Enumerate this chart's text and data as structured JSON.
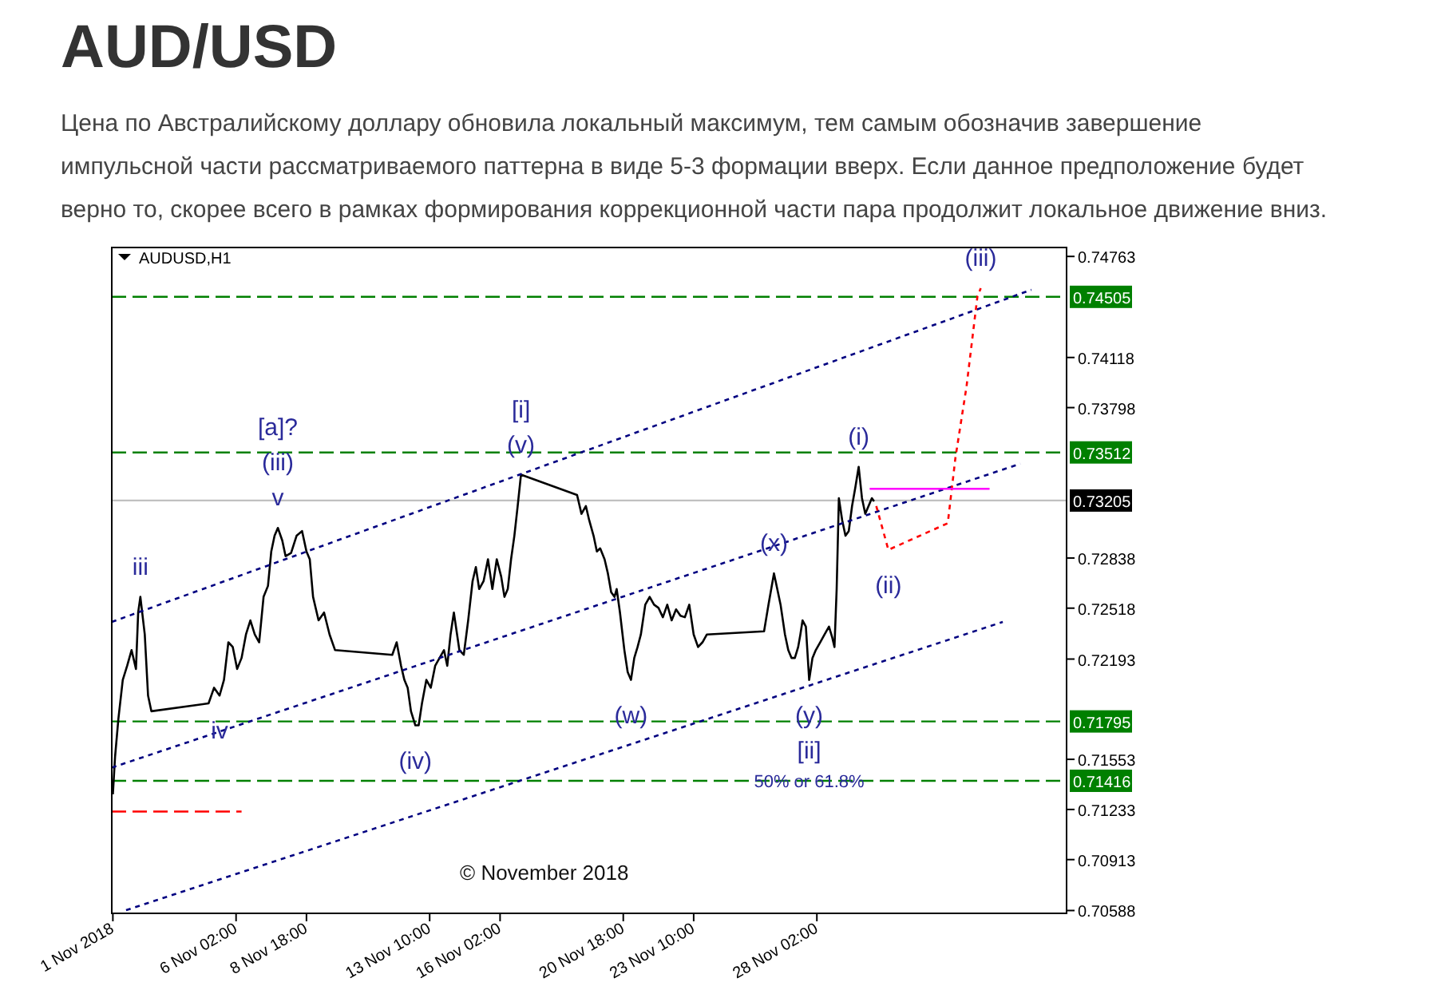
{
  "chart_data": {
    "type": "line",
    "title": "AUD/USD",
    "subtitle": "Цена по Австралийскому доллару обновила локальный максимум, тем самым обозначив завершение импульсной части рассматриваемого паттерна в виде 5-3 формации вверх. Если данное предположение будет верно то, скорее всего в рамках формирования коррекционной части пара продолжит локальное движение вниз.",
    "xlim": [
      "2018-11-01T09:00",
      "2018-12-07T13:00"
    ],
    "xticks": [
      {
        "value": "2018-11-01T10:00",
        "label": "1 Nov 2018"
      },
      {
        "value": "2018-11-06T02:00",
        "label": "6 Nov 02:00"
      },
      {
        "value": "2018-11-08T18:00",
        "label": "8 Nov 18:00"
      },
      {
        "value": "2018-11-13T10:00",
        "label": "13 Nov 10:00"
      },
      {
        "value": "2018-11-16T02:00",
        "label": "16 Nov 02:00"
      },
      {
        "value": "2018-11-20T18:00",
        "label": "20 Nov 18:00"
      },
      {
        "value": "2018-11-23T10:00",
        "label": "23 Nov 10:00"
      },
      {
        "value": "2018-11-28T02:00",
        "label": "28 Nov 02:00"
      }
    ],
    "ylim": [
      0.7057,
      0.7482
    ],
    "yticks": [
      0.74763,
      0.74118,
      0.73798,
      0.72838,
      0.72518,
      0.72193,
      0.71553,
      0.71233,
      0.70913,
      0.70588
    ],
    "series": [
      {
        "color": "#000000",
        "x": [
          "2018-11-01T10:00",
          "2018-11-01T12:00",
          "2018-11-01T15:00",
          "2018-11-01T19:00",
          "2018-11-01T23:00",
          "2018-11-02T03:00",
          "2018-11-02T07:00",
          "2018-11-02T09:00",
          "2018-11-02T11:00",
          "2018-11-02T15:00",
          "2018-11-02T18:00",
          "2018-11-02T21:00",
          "2018-11-05T01:00",
          "2018-11-05T06:00",
          "2018-11-05T11:00",
          "2018-11-05T15:00",
          "2018-11-05T19:00",
          "2018-11-05T23:00",
          "2018-11-06T03:00",
          "2018-11-06T07:00",
          "2018-11-06T11:00",
          "2018-11-06T15:00",
          "2018-11-06T19:00",
          "2018-11-06T23:00",
          "2018-11-07T03:00",
          "2018-11-07T07:00",
          "2018-11-07T10:00",
          "2018-11-07T13:00",
          "2018-11-07T16:00",
          "2018-11-07T20:00",
          "2018-11-07T23:00",
          "2018-11-08T04:00",
          "2018-11-08T09:00",
          "2018-11-08T14:00",
          "2018-11-08T18:00",
          "2018-11-08T21:00",
          "2018-11-09T00:00",
          "2018-11-09T05:00",
          "2018-11-09T10:00",
          "2018-11-09T15:00",
          "2018-11-09T20:00",
          "2018-11-12T00:00",
          "2018-11-12T04:00",
          "2018-11-12T08:00",
          "2018-11-12T11:00",
          "2018-11-12T14:00",
          "2018-11-12T17:00",
          "2018-11-12T21:00",
          "2018-11-13T00:00",
          "2018-11-13T03:00",
          "2018-11-13T07:00",
          "2018-11-13T11:00",
          "2018-11-13T15:00",
          "2018-11-13T19:00",
          "2018-11-13T23:00",
          "2018-11-14T02:00",
          "2018-11-14T05:00",
          "2018-11-14T08:00",
          "2018-11-14T13:00",
          "2018-11-14T17:00",
          "2018-11-14T21:00",
          "2018-11-15T01:00",
          "2018-11-15T04:00",
          "2018-11-15T07:00",
          "2018-11-15T11:00",
          "2018-11-15T15:00",
          "2018-11-15T19:00",
          "2018-11-15T23:00",
          "2018-11-16T03:00",
          "2018-11-16T06:00",
          "2018-11-16T09:00",
          "2018-11-16T12:00",
          "2018-11-16T15:00",
          "2018-11-16T18:00",
          "2018-11-16T21:00",
          "2018-11-19T00:00",
          "2018-11-19T04:00",
          "2018-11-19T08:00",
          "2018-11-19T11:00",
          "2018-11-19T15:00",
          "2018-11-19T18:00",
          "2018-11-19T21:00",
          "2018-11-20T01:00",
          "2018-11-20T04:00",
          "2018-11-20T07:00",
          "2018-11-20T10:00",
          "2018-11-20T12:00",
          "2018-11-20T15:00",
          "2018-11-20T19:00",
          "2018-11-20T22:00",
          "2018-11-21T01:00",
          "2018-11-21T04:00",
          "2018-11-21T07:00",
          "2018-11-21T10:00",
          "2018-11-21T14:00",
          "2018-11-21T18:00",
          "2018-11-21T22:00",
          "2018-11-22T02:00",
          "2018-11-22T06:00",
          "2018-11-22T10:00",
          "2018-11-22T14:00",
          "2018-11-22T18:00",
          "2018-11-22T22:00",
          "2018-11-23T02:00",
          "2018-11-23T06:00",
          "2018-11-23T10:00",
          "2018-11-23T14:00",
          "2018-11-23T18:00",
          "2018-11-23T22:00",
          "2018-11-26T02:00",
          "2018-11-26T06:00",
          "2018-11-26T11:00",
          "2018-11-26T14:00",
          "2018-11-26T17:00",
          "2018-11-26T21:00",
          "2018-11-27T00:00",
          "2018-11-27T03:00",
          "2018-11-27T06:00",
          "2018-11-27T09:00",
          "2018-11-27T11:00",
          "2018-11-27T13:00",
          "2018-11-27T16:00",
          "2018-11-27T19:00",
          "2018-11-27T22:00",
          "2018-11-28T01:00",
          "2018-11-28T05:00",
          "2018-11-28T09:00",
          "2018-11-28T13:00",
          "2018-11-28T16:00",
          "2018-11-28T18:00",
          "2018-11-28T20:00",
          "2018-11-28T22:00",
          "2018-11-29T01:00",
          "2018-11-29T04:00",
          "2018-11-29T07:00",
          "2018-11-29T10:00",
          "2018-11-29T13:00",
          "2018-11-29T16:00",
          "2018-11-29T19:00",
          "2018-11-29T22:00",
          "2018-11-30T01:00",
          "2018-11-30T04:00",
          "2018-11-30T06:00"
        ],
        "values": [
          0.7133,
          0.7157,
          0.7181,
          0.7206,
          0.7215,
          0.7225,
          0.7213,
          0.7249,
          0.7259,
          0.7235,
          0.7196,
          0.7186,
          0.7191,
          0.7201,
          0.7196,
          0.7206,
          0.723,
          0.7227,
          0.7213,
          0.722,
          0.7235,
          0.7244,
          0.7235,
          0.723,
          0.7259,
          0.7266,
          0.7288,
          0.7298,
          0.7303,
          0.7295,
          0.7285,
          0.7287,
          0.7298,
          0.7301,
          0.7288,
          0.7283,
          0.7259,
          0.7244,
          0.7249,
          0.7235,
          0.7225,
          0.7222,
          0.723,
          0.7215,
          0.7206,
          0.7201,
          0.7186,
          0.7177,
          0.7177,
          0.7191,
          0.7206,
          0.7201,
          0.7215,
          0.722,
          0.7225,
          0.7215,
          0.7235,
          0.7249,
          0.7225,
          0.7222,
          0.7244,
          0.7269,
          0.7278,
          0.7264,
          0.7269,
          0.7283,
          0.7264,
          0.7283,
          0.7272,
          0.7259,
          0.7264,
          0.7283,
          0.7298,
          0.7317,
          0.7337,
          0.7324,
          0.7312,
          0.7317,
          0.7308,
          0.7298,
          0.7288,
          0.729,
          0.7283,
          0.7274,
          0.7262,
          0.7259,
          0.7264,
          0.7249,
          0.7225,
          0.7211,
          0.7206,
          0.722,
          0.7227,
          0.7235,
          0.7254,
          0.7259,
          0.7254,
          0.7252,
          0.7246,
          0.7254,
          0.7244,
          0.7251,
          0.7247,
          0.7246,
          0.7254,
          0.7235,
          0.7227,
          0.723,
          0.7235,
          0.7237,
          0.7254,
          0.7274,
          0.7264,
          0.7254,
          0.7235,
          0.7225,
          0.722,
          0.722,
          0.7227,
          0.7235,
          0.7244,
          0.724,
          0.7206,
          0.722,
          0.7225,
          0.723,
          0.7235,
          0.724,
          0.7233,
          0.7227,
          0.7264,
          0.7322,
          0.7308,
          0.7298,
          0.7301,
          0.7317,
          0.7329,
          0.7342,
          0.7322,
          0.7312,
          0.7317,
          0.7322,
          0.732
        ]
      },
      {
        "color": "#000080",
        "line_style": "dotted",
        "x": [
          "2018-11-01T09:00",
          "2018-12-06T05:00"
        ],
        "values": [
          0.7243,
          0.7455
        ]
      },
      {
        "color": "#000080",
        "line_style": "dotted",
        "x": [
          "2018-11-01T09:00",
          "2018-12-05T19:00"
        ],
        "values": [
          0.715,
          0.7344
        ]
      },
      {
        "color": "#000080",
        "line_style": "dotted",
        "x": [
          "2018-11-01T22:00",
          "2018-12-05T03:00"
        ],
        "values": [
          0.7059,
          0.7243
        ]
      },
      {
        "color": "#ff0000",
        "line_style": "dotted",
        "x": [
          "2018-11-30T08:00",
          "2018-11-30T19:00",
          "2018-12-03T01:00",
          "2018-12-03T08:00",
          "2018-12-03T18:00",
          "2018-12-04T04:00",
          "2018-12-04T07:00"
        ],
        "values": [
          0.7317,
          0.7289,
          0.7306,
          0.7348,
          0.7393,
          0.7451,
          0.7456
        ]
      },
      {
        "color": "#ff00ff",
        "line_style": "solid",
        "x": [
          "2018-11-30T02:00",
          "2018-12-04T15:00"
        ],
        "values": [
          0.7328,
          0.7328
        ]
      },
      {
        "color": "#ff0000",
        "line_style": "dashed",
        "x": [
          "2018-11-01T09:00",
          "2018-11-06T07:00"
        ],
        "values": [
          0.7122,
          0.7122
        ]
      }
    ],
    "ref_lines": [
      {
        "axis": "y",
        "value": 0.74505,
        "label": "0.74505",
        "color": "#008000",
        "line_style": "dashed"
      },
      {
        "axis": "y",
        "value": 0.73512,
        "label": "0.73512",
        "color": "#008000",
        "line_style": "dashed"
      },
      {
        "axis": "y",
        "value": 0.73205,
        "label": "0.73205",
        "color": "#c0c0c0",
        "line_style": "solid"
      },
      {
        "axis": "y",
        "value": 0.71795,
        "label": "0.71795",
        "color": "#008000",
        "line_style": "dashed"
      },
      {
        "axis": "y",
        "value": 0.71416,
        "label": "0.71416",
        "color": "#008000",
        "line_style": "dashed"
      }
    ],
    "annotations": [
      "AUDUSD,H1",
      "© November 2018",
      {
        "text": "iii",
        "x": "2018-11-02T11:00",
        "y": 0.7259
      },
      {
        "text": "v",
        "x": "2018-11-07T16:00",
        "y": 0.7303
      },
      {
        "text": "(iii)",
        "x": "2018-11-07T16:00",
        "y": 0.7303
      },
      "[a]?",
      {
        "text": "iv",
        "x": "2018-11-05T11:00",
        "y": 0.7196
      },
      {
        "text": "(iv)",
        "x": "2018-11-12T21:00",
        "y": 0.7177
      },
      {
        "text": "(v)",
        "x": "2018-11-16T21:00",
        "y": 0.7337
      },
      {
        "text": "[i]",
        "x": "2018-11-16T21:00",
        "y": 0.7337
      },
      {
        "text": "(w)",
        "x": "2018-11-21T01:00",
        "y": 0.7206
      },
      {
        "text": "(x)",
        "x": "2018-11-26T11:00",
        "y": 0.7274
      },
      {
        "text": "(y)",
        "x": "2018-11-27T19:00",
        "y": 0.7206
      },
      {
        "text": "[ii]",
        "x": "2018-11-27T19:00",
        "y": 0.7206
      },
      "50% or 61.8%",
      {
        "text": "(i)",
        "x": "2018-11-29T16:00",
        "y": 0.7342
      },
      {
        "text": "(ii)",
        "x": "2018-11-30T19:00",
        "y": 0.7289
      },
      {
        "text": "(iii)",
        "x": "2018-12-04T07:00",
        "y": 0.7456
      }
    ]
  }
}
